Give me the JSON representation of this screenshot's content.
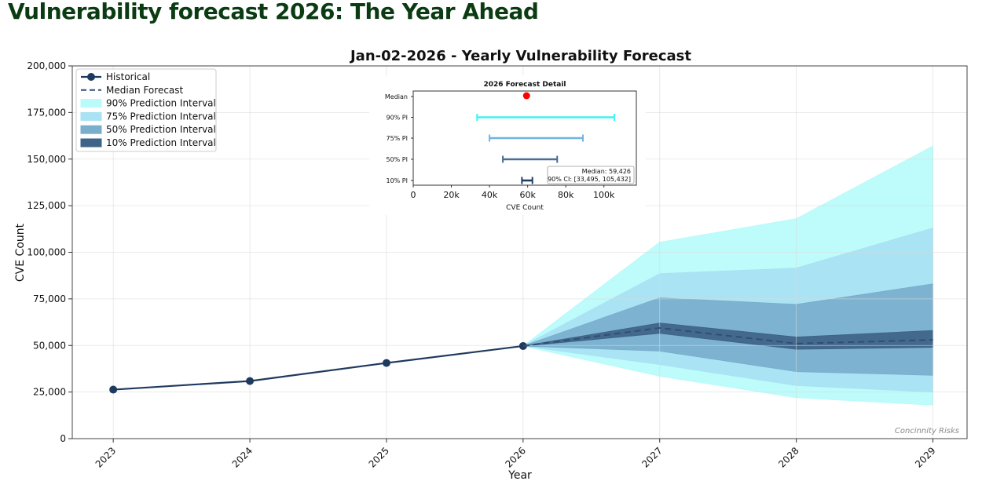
{
  "page_title": "Vulnerability forecast 2026: The Year Ahead",
  "chart_data": {
    "type": "line",
    "title": "Jan-02-2026 - Yearly Vulnerability Forecast",
    "xlabel": "Year",
    "ylabel": "CVE Count",
    "ylim": [
      0,
      200000
    ],
    "grid": true,
    "legend_position": "top-left",
    "watermark": "Concinnity Risks",
    "x": [
      2023,
      2024,
      2025,
      2026,
      2027,
      2028,
      2029
    ],
    "x_tick_labels": [
      "2023",
      "2024",
      "2025",
      "2026",
      "2027",
      "2028",
      "2029"
    ],
    "y_ticks": [
      0,
      25000,
      50000,
      75000,
      100000,
      125000,
      150000,
      175000,
      200000
    ],
    "y_tick_labels": [
      "0",
      "25,000",
      "50,000",
      "75,000",
      "100,000",
      "125,000",
      "150,000",
      "175,000",
      "200,000"
    ],
    "historical": {
      "name": "Historical",
      "x": [
        2023,
        2024,
        2025,
        2026
      ],
      "values": [
        26300,
        30900,
        40600,
        49700
      ]
    },
    "median_forecast": {
      "name": "Median Forecast",
      "x": [
        2026,
        2027,
        2028,
        2029
      ],
      "values": [
        49700,
        59400,
        51000,
        53000
      ]
    },
    "intervals": [
      {
        "name": "90% Prediction Interval",
        "color": "#b9fbfb",
        "x": [
          2026,
          2027,
          2028,
          2029
        ],
        "lower": [
          49700,
          33500,
          22000,
          18000
        ],
        "upper": [
          49700,
          105400,
          118000,
          157000
        ]
      },
      {
        "name": "75% Prediction Interval",
        "color": "#a8e2f3",
        "x": [
          2026,
          2027,
          2028,
          2029
        ],
        "lower": [
          49700,
          39800,
          28500,
          25000
        ],
        "upper": [
          49700,
          88500,
          91500,
          113000
        ]
      },
      {
        "name": "50% Prediction Interval",
        "color": "#7aafcc",
        "x": [
          2026,
          2027,
          2028,
          2029
        ],
        "lower": [
          49700,
          47000,
          36000,
          34000
        ],
        "upper": [
          49700,
          75500,
          72000,
          83000
        ]
      },
      {
        "name": "10% Prediction Interval",
        "color": "#3e6487",
        "x": [
          2026,
          2027,
          2028,
          2029
        ],
        "lower": [
          49700,
          56500,
          48000,
          49000
        ],
        "upper": [
          49700,
          62000,
          54500,
          58000
        ]
      }
    ],
    "inset": {
      "type": "interval",
      "title": "2026 Forecast Detail",
      "xlabel": "CVE Count",
      "xlim": [
        0,
        117000
      ],
      "x_ticks": [
        0,
        20000,
        40000,
        60000,
        80000,
        100000
      ],
      "x_tick_labels": [
        "0",
        "20k",
        "40k",
        "60k",
        "80k",
        "100k"
      ],
      "median_label": "Median",
      "median": 59426,
      "rows": [
        {
          "label": "90% PI",
          "lower": 33495,
          "upper": 105432,
          "color": "#3ff2f2"
        },
        {
          "label": "75% PI",
          "lower": 40000,
          "upper": 89000,
          "color": "#6fb4e4"
        },
        {
          "label": "50% PI",
          "lower": 47000,
          "upper": 75500,
          "color": "#4a6c96"
        },
        {
          "label": "10% PI",
          "lower": 57000,
          "upper": 62500,
          "color": "#223e64"
        }
      ],
      "annotation_line1": "Median: 59,426",
      "annotation_line2": "90% CI: [33,495, 105,432]"
    },
    "colors": {
      "historical": "#1f3a5f",
      "median": "#2f4f72",
      "median_point": "#ff0000"
    }
  }
}
